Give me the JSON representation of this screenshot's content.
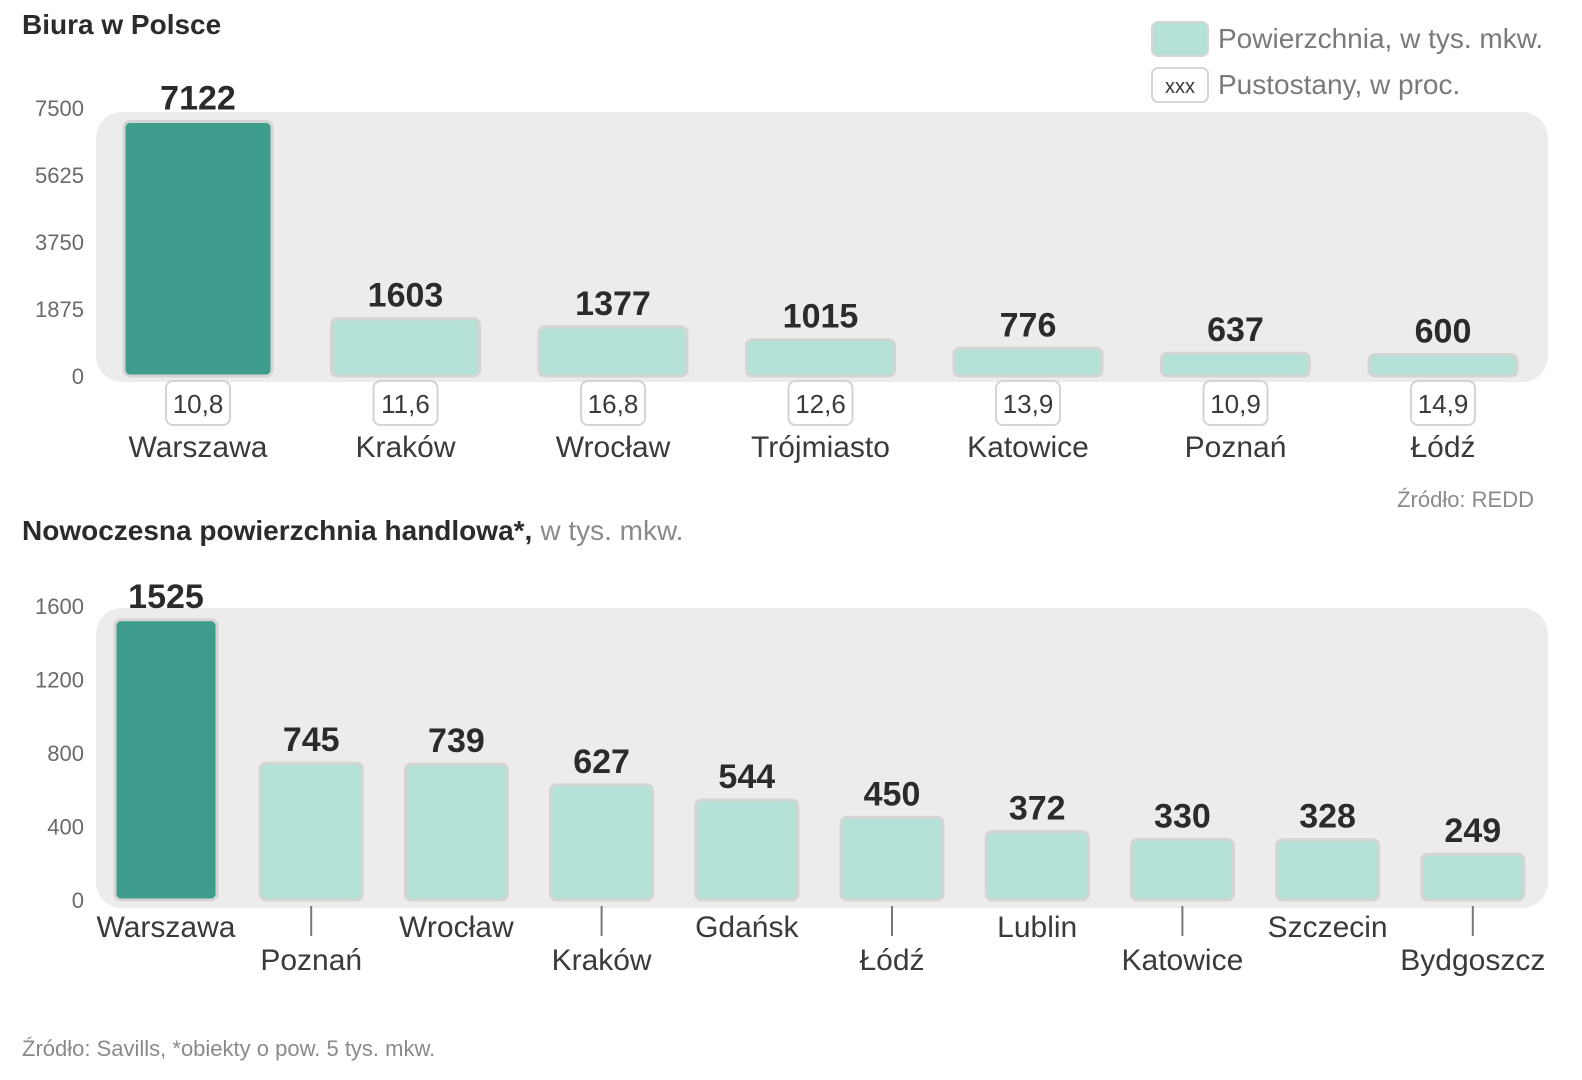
{
  "legend": {
    "area_label": "Powierzchnia, w tys. mkw.",
    "vacancy_symbol": "xxx",
    "vacancy_label": "Pustostany, w proc."
  },
  "colors": {
    "highlight": "#3d9c8c",
    "bar": "#b4e2d8",
    "panel": "#ececec",
    "text": "#2b2b2b"
  },
  "chart_data": [
    {
      "type": "bar",
      "title": "Biura w Polsce",
      "ylim": [
        0,
        7500
      ],
      "yticks": [
        0,
        1875,
        3750,
        5625,
        7500
      ],
      "categories": [
        "Warszawa",
        "Kraków",
        "Wrocław",
        "Trójmiasto",
        "Katowice",
        "Poznań",
        "Łódź"
      ],
      "series": [
        {
          "name": "Powierzchnia, w tys. mkw.",
          "values": [
            7122,
            1603,
            1377,
            1015,
            776,
            637,
            600
          ]
        },
        {
          "name": "Pustostany, w proc.",
          "values": [
            "10,8",
            "11,6",
            "16,8",
            "12,6",
            "13,9",
            "10,9",
            "14,9"
          ]
        }
      ],
      "highlight_index": 0,
      "source": "Źródło: REDD"
    },
    {
      "type": "bar",
      "title": "Nowoczesna powierzchnia handlowa*,",
      "title_suffix": "w tys. mkw.",
      "ylim": [
        0,
        1600
      ],
      "yticks": [
        0,
        400,
        800,
        1200,
        1600
      ],
      "categories": [
        "Warszawa",
        "Poznań",
        "Wrocław",
        "Kraków",
        "Gdańsk",
        "Łódź",
        "Lublin",
        "Katowice",
        "Szczecin",
        "Bydgoszcz"
      ],
      "values": [
        1525,
        745,
        739,
        627,
        544,
        450,
        372,
        330,
        328,
        249
      ],
      "highlight_index": 0,
      "source": "Źródło:  Savills, *obiekty o pow. 5 tys. mkw."
    }
  ]
}
